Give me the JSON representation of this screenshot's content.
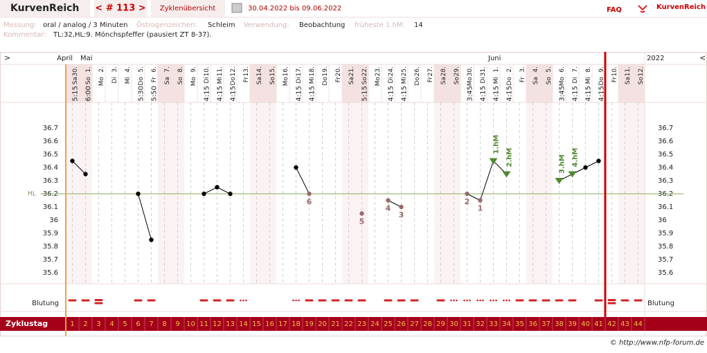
{
  "header": {
    "brand": "KurvenReich",
    "cycle_nav": "< # 113 >",
    "overview": "Zyklenübersicht",
    "date_range": "30.04.2022 bis 09.06.2022",
    "faq": "FAQ",
    "brand_right": "KurvenReich"
  },
  "info": {
    "measure_label": "Messung:",
    "measure": "oral / analog / 3 Minuten",
    "estrogen_label": "Östrogenzeichen:",
    "estrogen": "Schleim",
    "use_label": "Verwendung:",
    "use": "Beobachtung",
    "earliest_label": "früheste 1.hM:",
    "earliest": "14",
    "comment_label": "Kommentar:",
    "comment": "TL:32,HL:9. Mönchspfeffer (pausiert ZT 8-37)."
  },
  "chart_data": {
    "type": "line",
    "nav_left": ">",
    "nav_right": "<",
    "year": "2022",
    "month_labels": [
      "April",
      "Mai",
      null,
      null,
      null,
      null,
      null,
      null,
      null,
      null,
      null,
      null,
      null,
      null,
      null,
      null,
      null,
      null,
      null,
      null,
      null,
      null,
      null,
      null,
      null,
      null,
      null,
      null,
      null,
      null,
      null,
      null,
      "Juni",
      null,
      null,
      null,
      null,
      null,
      null,
      null,
      null,
      null,
      null,
      null
    ],
    "dates": [
      "30.",
      "1.",
      "2.",
      "3.",
      "4.",
      "5.",
      "6.",
      "7.",
      "8.",
      "9.",
      "10.",
      "11.",
      "12.",
      "13.",
      "14.",
      "15.",
      "16.",
      "17.",
      "18.",
      "19.",
      "20.",
      "21.",
      "22.",
      "23.",
      "24.",
      "25.",
      "26.",
      "27.",
      "28.",
      "29.",
      "30.",
      "31.",
      "1.",
      "2.",
      "3.",
      "4.",
      "5.",
      "6.",
      "7.",
      "8.",
      "9.",
      "10.",
      "11.",
      "12."
    ],
    "weekdays": [
      "Sa",
      "So",
      "Mo",
      "Di",
      "Mi",
      "Do",
      "Fr",
      "Sa",
      "So",
      "Mo",
      "Di",
      "Mi",
      "Do",
      "Fr",
      "Sa",
      "So",
      "Mo",
      "Di",
      "Mi",
      "Do",
      "Fr",
      "Sa",
      "So",
      "Mo",
      "Di",
      "Mi",
      "Do",
      "Fr",
      "Sa",
      "So",
      "Mo",
      "Di",
      "Mi",
      "Do",
      "Fr",
      "Sa",
      "So",
      "Mo",
      "Di",
      "Mi",
      "Do",
      "Fr",
      "Sa",
      "So"
    ],
    "times": [
      "5:15",
      "6:00",
      null,
      null,
      null,
      "5:30",
      "5:50",
      null,
      null,
      null,
      "4:15",
      "4:15",
      "4:15",
      null,
      null,
      null,
      null,
      "4:15",
      "4:15",
      null,
      null,
      null,
      "5:15",
      null,
      "4:15",
      "4:15",
      null,
      null,
      null,
      null,
      "3:45",
      "4:15",
      "4:15",
      "4:15",
      null,
      null,
      null,
      "3:45",
      "4:15",
      "4:15",
      "4:15",
      null,
      null,
      null
    ],
    "weekend_days": [
      0,
      1,
      7,
      8,
      14,
      15,
      21,
      22,
      28,
      29,
      35,
      36,
      42,
      43
    ],
    "series": [
      {
        "name": "Temperatur",
        "color": "#000000",
        "values": [
          36.45,
          36.35,
          null,
          null,
          null,
          36.2,
          35.85,
          null,
          null,
          null,
          36.2,
          36.25,
          36.2,
          null,
          null,
          null,
          null,
          36.4,
          36.2,
          null,
          null,
          null,
          36.05,
          null,
          36.15,
          36.1,
          null,
          null,
          null,
          null,
          36.2,
          36.15,
          36.45,
          36.35,
          null,
          null,
          null,
          36.3,
          36.35,
          36.4,
          36.45,
          null,
          null,
          null
        ]
      }
    ],
    "point_labels": [
      null,
      null,
      null,
      null,
      null,
      null,
      null,
      null,
      null,
      null,
      null,
      null,
      null,
      null,
      null,
      null,
      null,
      null,
      "6",
      null,
      null,
      null,
      "5",
      null,
      "4",
      "3",
      null,
      null,
      null,
      null,
      "2",
      "1",
      "1.hM",
      "2.hM",
      null,
      null,
      null,
      "3.hM",
      "4.hM",
      null,
      null,
      null,
      null,
      null
    ],
    "excluded_days": [
      18,
      22,
      24,
      25,
      30,
      31
    ],
    "excluded_color": "#9a6a6a",
    "higher_days": [
      32,
      33,
      37,
      38
    ],
    "higher_color": "#4f8a2f",
    "ylim": [
      35.5,
      36.9
    ],
    "yticks": [
      35.6,
      35.7,
      35.8,
      35.9,
      36,
      36.1,
      36.2,
      36.3,
      36.4,
      36.5,
      36.6,
      36.7
    ],
    "hl": {
      "value": 36.2,
      "label": "HL"
    },
    "bleeding_label": "Blutung",
    "bleeding": [
      2,
      2,
      3,
      0,
      0,
      2,
      2,
      0,
      0,
      0,
      2,
      2,
      2,
      1,
      0,
      0,
      0,
      1,
      2,
      2,
      2,
      2,
      2,
      0,
      2,
      2,
      2,
      0,
      2,
      1,
      1,
      1,
      1,
      1,
      2,
      2,
      2,
      2,
      2,
      0,
      2,
      3,
      2,
      2
    ],
    "bleeding_color": "#d42020",
    "cycle_day_label": "Zyklustag",
    "cycle_days": [
      1,
      2,
      3,
      4,
      5,
      6,
      7,
      8,
      9,
      10,
      11,
      12,
      13,
      14,
      15,
      16,
      17,
      18,
      19,
      20,
      21,
      22,
      23,
      24,
      25,
      26,
      27,
      28,
      29,
      30,
      31,
      32,
      33,
      34,
      35,
      36,
      37,
      38,
      39,
      40,
      41,
      42,
      43,
      44
    ],
    "today_index": 40
  },
  "footer": "© http://www.nfp-forum.de"
}
